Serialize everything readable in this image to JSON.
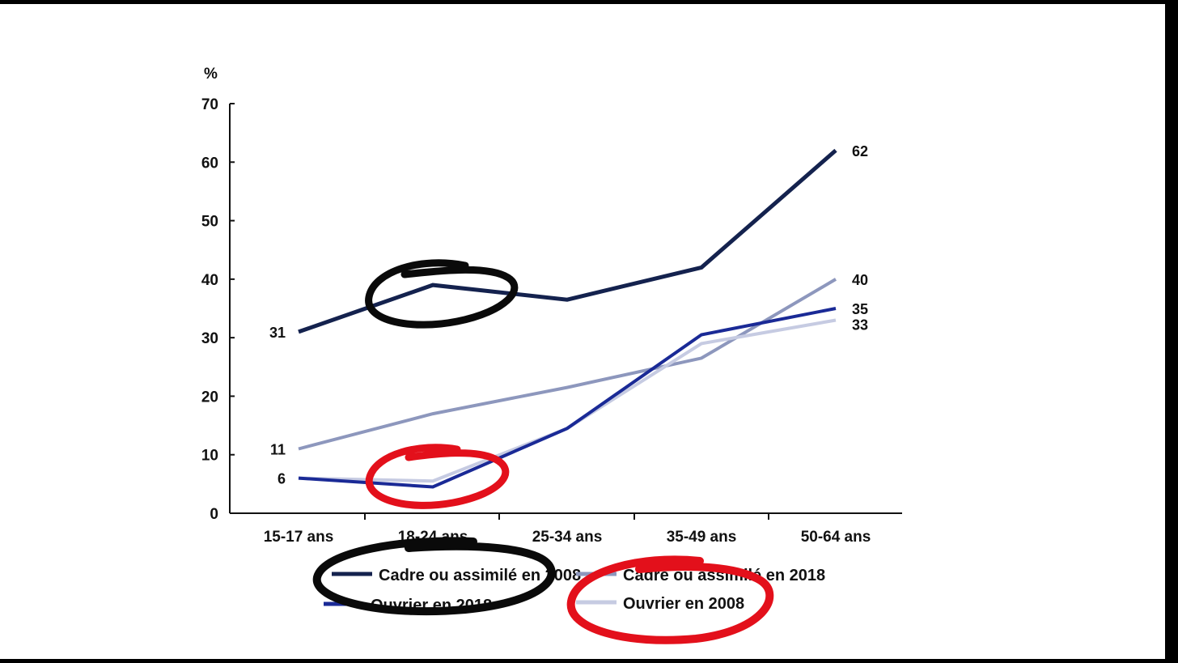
{
  "chart_data": {
    "type": "line",
    "ylabel": "%",
    "ylim": [
      0,
      70
    ],
    "yticks": [
      "0",
      "10",
      "20",
      "30",
      "40",
      "50",
      "60",
      "70"
    ],
    "categories": [
      "15-17 ans",
      "18-24 ans",
      "25-34 ans",
      "35-49 ans",
      "50-64 ans"
    ],
    "series": [
      {
        "name": "Cadre ou assimilé en 2008",
        "color": "#14224e",
        "values": [
          31,
          39,
          36.5,
          42,
          62
        ]
      },
      {
        "name": "Cadre ou assimilé en 2018",
        "color": "#8d97bd",
        "values": [
          11,
          17,
          21.5,
          26.5,
          40
        ]
      },
      {
        "name": "Ouvrier en 2018",
        "color": "#1a2a96",
        "values": [
          6,
          4.5,
          14.5,
          30.5,
          35
        ]
      },
      {
        "name": "Ouvrier en 2008",
        "color": "#c6cbe2",
        "values": [
          6,
          5.5,
          14.5,
          29,
          33
        ]
      }
    ],
    "end_labels": [
      {
        "series": 0,
        "text": "62"
      },
      {
        "series": 1,
        "text": "40"
      },
      {
        "series": 2,
        "text": "35"
      },
      {
        "series": 3,
        "text": "33"
      }
    ],
    "start_labels": [
      {
        "series": 0,
        "text": "31"
      },
      {
        "series": 1,
        "text": "11"
      },
      {
        "series": 2,
        "text": "6"
      }
    ],
    "legend_position": "bottom",
    "grid": false
  },
  "annotations": {
    "circle_colors": [
      "#0a0a0a",
      "#e3101b"
    ]
  }
}
